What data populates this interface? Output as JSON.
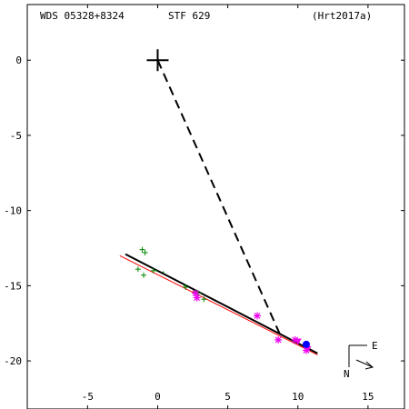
{
  "header": {
    "left": "WDS 05328+8324",
    "center": "STF 629",
    "right": "(Hrt2017a)"
  },
  "compass": {
    "east": "E",
    "north": "N"
  },
  "colors": {
    "background": "#ffffff",
    "axes": "#000000",
    "green_marks": "#008800",
    "magenta_marks": "#ee00ee",
    "blue_point": "#0000ff",
    "fit_line": "#000000",
    "red_line": "#ff0000"
  },
  "chart_data": {
    "type": "scatter",
    "title": "",
    "xlabel": "",
    "ylabel": "",
    "xlim": [
      -9.3,
      17.6
    ],
    "ylim": [
      -23.2,
      3.7
    ],
    "x_ticks": [
      -5,
      0,
      5,
      10,
      15
    ],
    "y_ticks": [
      0,
      -5,
      -10,
      -15,
      -20
    ],
    "grid": false,
    "primary": {
      "x": 0,
      "y": 0,
      "marker": "plus-large"
    },
    "dashed_connector": {
      "from": [
        0,
        0
      ],
      "to": [
        8.8,
        -18.4
      ]
    },
    "fit_line_black": {
      "from": [
        -2.3,
        -12.9
      ],
      "to": [
        11.4,
        -19.5
      ]
    },
    "fit_line_red": {
      "from": [
        -2.7,
        -13.0
      ],
      "to": [
        11.4,
        -19.6
      ]
    },
    "series": [
      {
        "marker": "plus",
        "color": "#008800",
        "points": [
          {
            "x": -1.1,
            "y": -12.6
          },
          {
            "x": -0.9,
            "y": -12.8
          },
          {
            "x": -1.4,
            "y": -13.9
          },
          {
            "x": -1.0,
            "y": -14.3
          },
          {
            "x": -0.3,
            "y": -14.0
          },
          {
            "x": 2.0,
            "y": -15.1
          },
          {
            "x": 2.7,
            "y": -15.4
          },
          {
            "x": 2.9,
            "y": -15.5
          },
          {
            "x": 3.3,
            "y": -15.9
          }
        ]
      },
      {
        "marker": "dot",
        "color": "#008800",
        "points": [
          {
            "x": -0.1,
            "y": -14.0
          },
          {
            "x": 0.4,
            "y": -14.1
          },
          {
            "x": 1.9,
            "y": -15.0
          }
        ]
      },
      {
        "marker": "asterisk",
        "color": "#ee00ee",
        "points": [
          {
            "x": 2.7,
            "y": -15.5
          },
          {
            "x": 2.8,
            "y": -15.8
          },
          {
            "x": 7.1,
            "y": -17.0
          },
          {
            "x": 8.6,
            "y": -18.6
          },
          {
            "x": 9.8,
            "y": -18.6
          },
          {
            "x": 10.6,
            "y": -19.3
          }
        ]
      },
      {
        "marker": "triangle",
        "color": "#ee00ee",
        "points": [
          {
            "x": 10.0,
            "y": -18.7
          },
          {
            "x": 10.7,
            "y": -19.2
          }
        ]
      },
      {
        "marker": "circle",
        "color": "#0000ff",
        "points": [
          {
            "x": 10.6,
            "y": -18.9
          }
        ]
      }
    ]
  }
}
